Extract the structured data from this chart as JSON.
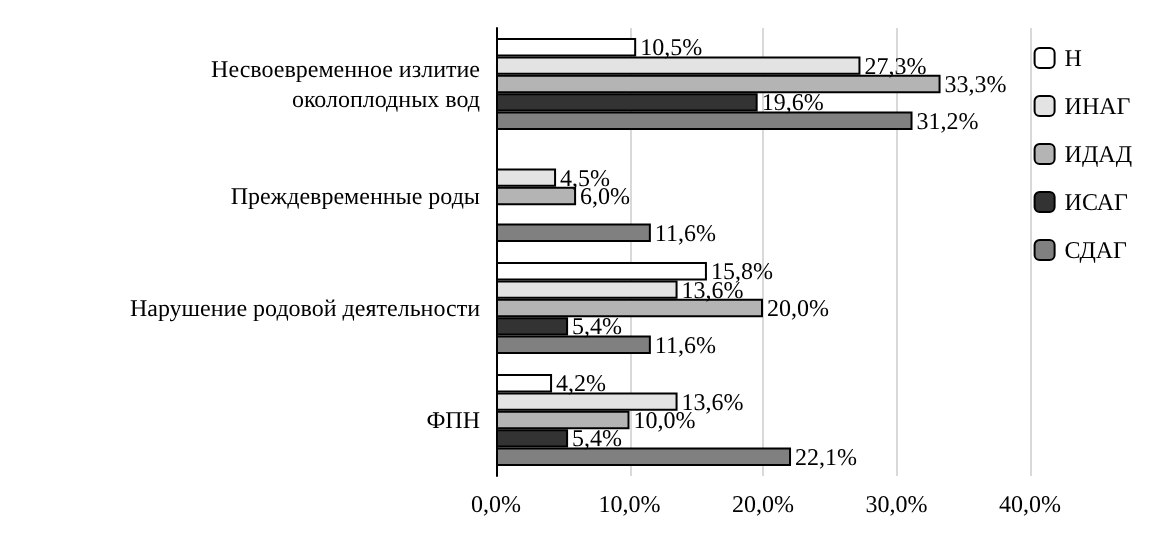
{
  "chart_data": {
    "type": "bar",
    "orientation": "horizontal",
    "categories": [
      "Несвоевременное излитие\nоколоплодных вод",
      "Преждевременные роды",
      "Нарушение родовой деятельности",
      "ФПН"
    ],
    "series": [
      {
        "name": "Н",
        "color": "#ffffff",
        "values": [
          10.5,
          null,
          15.8,
          4.2
        ],
        "value_labels": [
          "10,5%",
          null,
          "15,8%",
          "4,2%"
        ]
      },
      {
        "name": "ИНАГ",
        "color": "#e3e3e3",
        "values": [
          27.3,
          4.5,
          13.6,
          13.6
        ],
        "value_labels": [
          "27,3%",
          "4,5%",
          "13,6%",
          "13,6%"
        ]
      },
      {
        "name": "ИДАД",
        "color": "#b4b4b4",
        "values": [
          33.3,
          6.0,
          20.0,
          10.0
        ],
        "value_labels": [
          "33,3%",
          "6,0%",
          "20,0%",
          "10,0%"
        ]
      },
      {
        "name": "ИСАГ",
        "color": "#333333",
        "values": [
          19.6,
          null,
          5.4,
          5.4
        ],
        "value_labels": [
          "19,6%",
          null,
          "5,4%",
          "5,4%"
        ]
      },
      {
        "name": "СДАГ",
        "color": "#808080",
        "values": [
          31.2,
          11.6,
          11.6,
          22.1
        ],
        "value_labels": [
          "31,2%",
          "11,6%",
          "11,6%",
          "22,1%"
        ]
      }
    ],
    "xlim": [
      0,
      40
    ],
    "xticks": [
      {
        "value": 0,
        "label": "0,0%"
      },
      {
        "value": 10,
        "label": "10,0%"
      },
      {
        "value": 20,
        "label": "20,0%"
      },
      {
        "value": 30,
        "label": "30,0%"
      },
      {
        "value": 40,
        "label": "40,0%"
      }
    ],
    "grid": "x",
    "legend": "right"
  }
}
